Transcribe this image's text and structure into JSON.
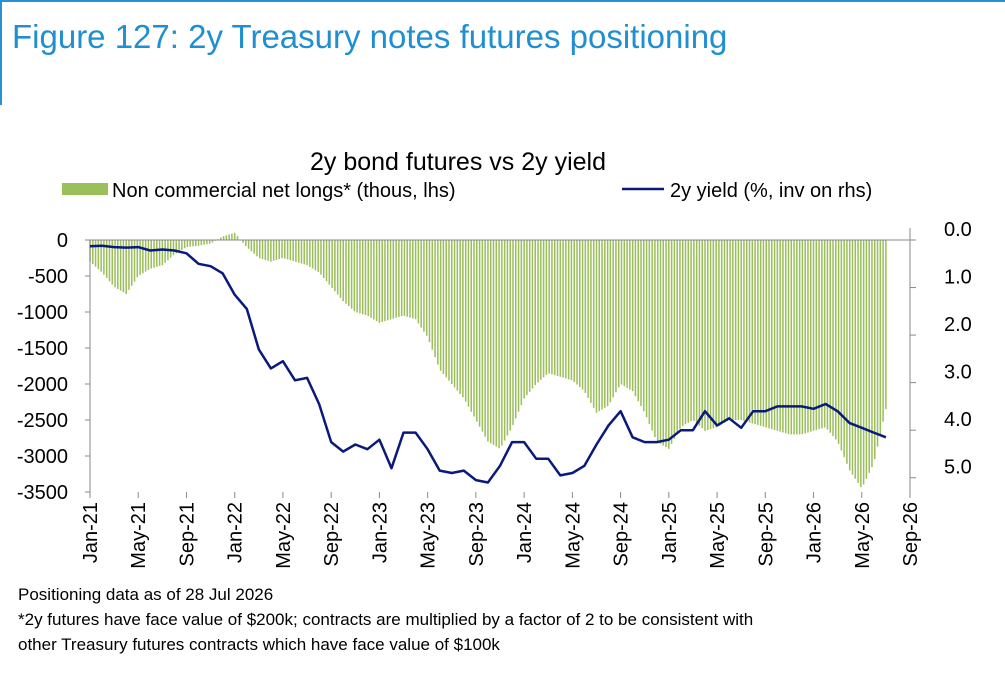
{
  "figure_title": "Figure 127: 2y Treasury notes futures positioning",
  "notes": {
    "line1": "Positioning data as of 28 Jul 2026",
    "line2": "*2y futures have face value of $200k; contracts are multiplied by a factor of 2 to be consistent with",
    "line3": "other Treasury futures contracts which have face value of $100k"
  },
  "colors": {
    "title_blue": "#1f8fd1",
    "bars": "#9bbf5a",
    "line": "#0a1a7a"
  },
  "chart_data": {
    "type": "bar+line",
    "title": "2y bond futures vs 2y yield",
    "legend": {
      "placement": "top"
    },
    "series": [
      {
        "name": "Non commercial net longs* (thous, lhs)",
        "kind": "bar",
        "axis": "left",
        "points": [
          [
            "2021-01",
            -300
          ],
          [
            "2021-02",
            -450
          ],
          [
            "2021-03",
            -650
          ],
          [
            "2021-04",
            -750
          ],
          [
            "2021-05",
            -500
          ],
          [
            "2021-06",
            -400
          ],
          [
            "2021-07",
            -350
          ],
          [
            "2021-08",
            -200
          ],
          [
            "2021-09",
            -100
          ],
          [
            "2021-10",
            -80
          ],
          [
            "2021-11",
            -50
          ],
          [
            "2021-12",
            50
          ],
          [
            "2022-01",
            100
          ],
          [
            "2022-02",
            -100
          ],
          [
            "2022-03",
            -250
          ],
          [
            "2022-04",
            -300
          ],
          [
            "2022-05",
            -250
          ],
          [
            "2022-06",
            -300
          ],
          [
            "2022-07",
            -350
          ],
          [
            "2022-08",
            -450
          ],
          [
            "2022-09",
            -650
          ],
          [
            "2022-10",
            -850
          ],
          [
            "2022-11",
            -1000
          ],
          [
            "2022-12",
            -1050
          ],
          [
            "2023-01",
            -1150
          ],
          [
            "2023-02",
            -1100
          ],
          [
            "2023-03",
            -1050
          ],
          [
            "2023-04",
            -1100
          ],
          [
            "2023-05",
            -1350
          ],
          [
            "2023-06",
            -1800
          ],
          [
            "2023-07",
            -2000
          ],
          [
            "2023-08",
            -2200
          ],
          [
            "2023-09",
            -2500
          ],
          [
            "2023-10",
            -2800
          ],
          [
            "2023-11",
            -2900
          ],
          [
            "2023-12",
            -2600
          ],
          [
            "2024-01",
            -2200
          ],
          [
            "2024-02",
            -2000
          ],
          [
            "2024-03",
            -1850
          ],
          [
            "2024-04",
            -1900
          ],
          [
            "2024-05",
            -1950
          ],
          [
            "2024-06",
            -2100
          ],
          [
            "2024-07",
            -2400
          ],
          [
            "2024-08",
            -2300
          ],
          [
            "2024-09",
            -2000
          ],
          [
            "2024-10",
            -2100
          ],
          [
            "2024-11",
            -2400
          ],
          [
            "2024-12",
            -2800
          ],
          [
            "2025-01",
            -2900
          ],
          [
            "2025-02",
            -2600
          ],
          [
            "2025-03",
            -2500
          ],
          [
            "2025-04",
            -2650
          ],
          [
            "2025-05",
            -2600
          ],
          [
            "2025-06",
            -2500
          ],
          [
            "2025-07",
            -2500
          ],
          [
            "2025-08",
            -2550
          ],
          [
            "2025-09",
            -2600
          ],
          [
            "2025-10",
            -2650
          ],
          [
            "2025-11",
            -2700
          ],
          [
            "2025-12",
            -2700
          ],
          [
            "2026-01",
            -2650
          ],
          [
            "2026-02",
            -2600
          ],
          [
            "2026-03",
            -2800
          ],
          [
            "2026-04",
            -3200
          ],
          [
            "2026-05",
            -3450
          ],
          [
            "2026-06",
            -3100
          ],
          [
            "2026-07",
            -2350
          ]
        ]
      },
      {
        "name": "2y yield (%, inv on rhs)",
        "kind": "line",
        "axis": "right",
        "points": [
          [
            "2021-01",
            0.13
          ],
          [
            "2021-02",
            0.12
          ],
          [
            "2021-03",
            0.15
          ],
          [
            "2021-04",
            0.16
          ],
          [
            "2021-05",
            0.15
          ],
          [
            "2021-06",
            0.22
          ],
          [
            "2021-07",
            0.2
          ],
          [
            "2021-08",
            0.22
          ],
          [
            "2021-09",
            0.28
          ],
          [
            "2021-10",
            0.5
          ],
          [
            "2021-11",
            0.55
          ],
          [
            "2021-12",
            0.7
          ],
          [
            "2022-01",
            1.15
          ],
          [
            "2022-02",
            1.45
          ],
          [
            "2022-03",
            2.3
          ],
          [
            "2022-04",
            2.7
          ],
          [
            "2022-05",
            2.55
          ],
          [
            "2022-06",
            2.95
          ],
          [
            "2022-07",
            2.9
          ],
          [
            "2022-08",
            3.45
          ],
          [
            "2022-09",
            4.25
          ],
          [
            "2022-10",
            4.45
          ],
          [
            "2022-11",
            4.3
          ],
          [
            "2022-12",
            4.4
          ],
          [
            "2023-01",
            4.2
          ],
          [
            "2023-02",
            4.8
          ],
          [
            "2023-03",
            4.05
          ],
          [
            "2023-04",
            4.05
          ],
          [
            "2023-05",
            4.4
          ],
          [
            "2023-06",
            4.85
          ],
          [
            "2023-07",
            4.9
          ],
          [
            "2023-08",
            4.85
          ],
          [
            "2023-09",
            5.05
          ],
          [
            "2023-10",
            5.1
          ],
          [
            "2023-11",
            4.75
          ],
          [
            "2023-12",
            4.25
          ],
          [
            "2024-01",
            4.25
          ],
          [
            "2024-02",
            4.6
          ],
          [
            "2024-03",
            4.6
          ],
          [
            "2024-04",
            4.95
          ],
          [
            "2024-05",
            4.9
          ],
          [
            "2024-06",
            4.75
          ],
          [
            "2024-07",
            4.3
          ],
          [
            "2024-08",
            3.9
          ],
          [
            "2024-09",
            3.6
          ],
          [
            "2024-10",
            4.15
          ],
          [
            "2024-11",
            4.25
          ],
          [
            "2024-12",
            4.25
          ],
          [
            "2025-01",
            4.2
          ],
          [
            "2025-02",
            4.0
          ],
          [
            "2025-03",
            4.0
          ],
          [
            "2025-04",
            3.6
          ],
          [
            "2025-05",
            3.9
          ],
          [
            "2025-06",
            3.75
          ],
          [
            "2025-07",
            3.95
          ],
          [
            "2025-08",
            3.6
          ],
          [
            "2025-09",
            3.6
          ],
          [
            "2025-10",
            3.5
          ],
          [
            "2025-11",
            3.5
          ],
          [
            "2025-12",
            3.5
          ],
          [
            "2026-01",
            3.55
          ],
          [
            "2026-02",
            3.45
          ],
          [
            "2026-03",
            3.6
          ],
          [
            "2026-04",
            3.85
          ],
          [
            "2026-05",
            3.95
          ],
          [
            "2026-06",
            4.05
          ],
          [
            "2026-07",
            4.15
          ]
        ]
      }
    ],
    "x_tick_labels": [
      "Jan-21",
      "May-21",
      "Sep-21",
      "Jan-22",
      "May-22",
      "Sep-22",
      "Jan-23",
      "May-23",
      "Sep-23",
      "Jan-24",
      "May-24",
      "Sep-24",
      "Jan-25",
      "May-25",
      "Sep-25",
      "Jan-26",
      "May-26",
      "Sep-26"
    ],
    "x_ticks": [
      "2021-01",
      "2021-05",
      "2021-09",
      "2022-01",
      "2022-05",
      "2022-09",
      "2023-01",
      "2023-05",
      "2023-09",
      "2024-01",
      "2024-05",
      "2024-09",
      "2025-01",
      "2025-05",
      "2025-09",
      "2026-01",
      "2026-05",
      "2026-09"
    ],
    "x_range": [
      "2021-01",
      "2026-09"
    ],
    "y_left": {
      "ticks": [
        0,
        -500,
        -1000,
        -1500,
        -2000,
        -2500,
        -3000,
        -3500
      ],
      "tick_labels": [
        "0",
        "-500",
        "-1000",
        "-1500",
        "-2000",
        "-2500",
        "-3000",
        "-3500"
      ],
      "range": [
        -3500,
        0
      ]
    },
    "y_right": {
      "ticks": [
        0,
        1,
        2,
        3,
        4,
        5
      ],
      "tick_labels": [
        "0.0",
        "1.0",
        "2.0",
        "3.0",
        "4.0",
        "5.0"
      ],
      "range": [
        0,
        5.3
      ],
      "inverted": true
    },
    "grid": false
  }
}
